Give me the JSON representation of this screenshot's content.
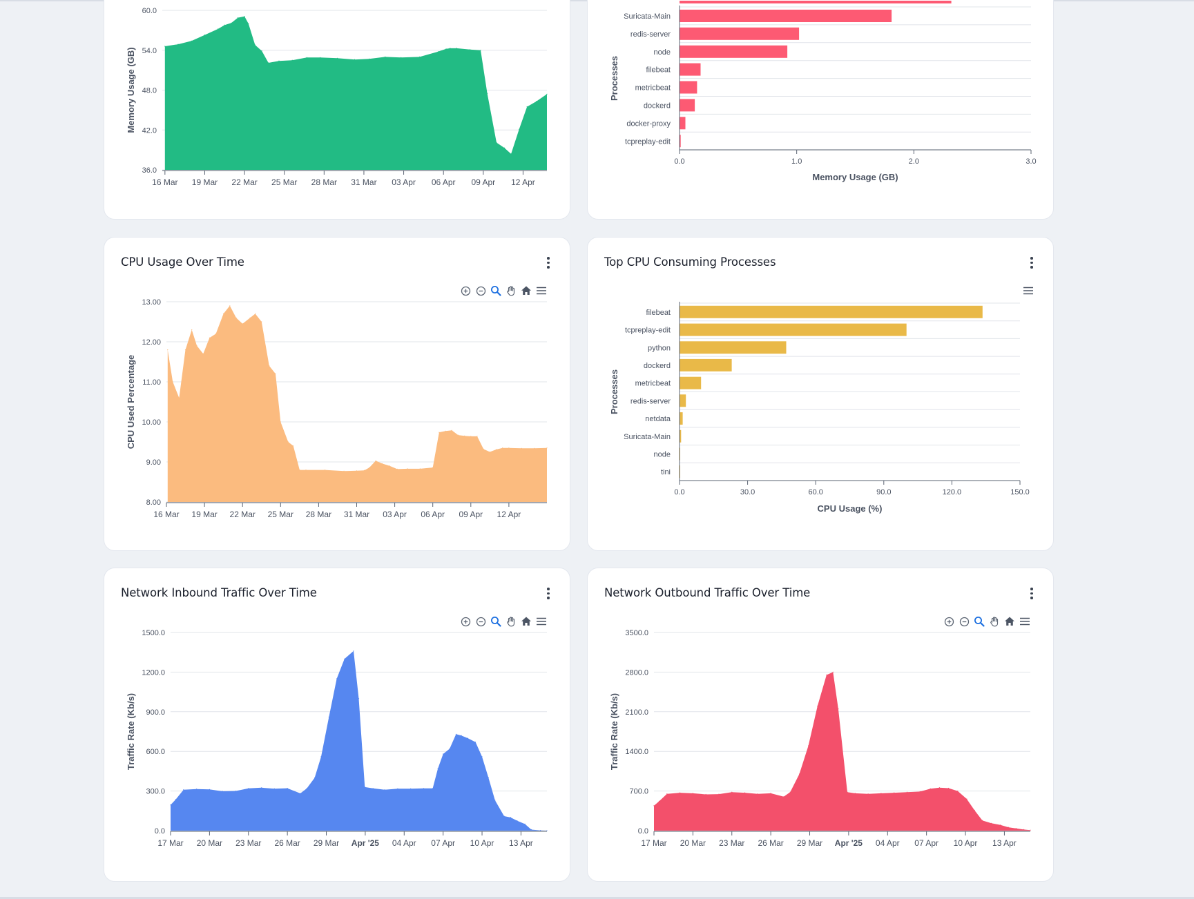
{
  "colors": {
    "memory_area": "#22bb84",
    "cpu_area": "#fbbb7f",
    "inbound_area": "#5687f0",
    "outbound_area": "#f3506b",
    "memory_bar": "#fd5a73",
    "cpu_bar": "#e9b948"
  },
  "cards": {
    "cpu_usage": {
      "title": "CPU Usage Over Time"
    },
    "top_cpu": {
      "title": "Top CPU Consuming Processes"
    },
    "net_in": {
      "title": "Network Inbound Traffic Over Time"
    },
    "net_out": {
      "title": "Network Outbound Traffic Over Time"
    }
  },
  "toolbar_icons": [
    "zoom-in-icon",
    "zoom-out-icon",
    "selection-zoom-icon",
    "pan-hand-icon",
    "home-reset-icon",
    "menu-icon"
  ],
  "chart_data": [
    {
      "id": "memory_over_time",
      "type": "area",
      "title": "",
      "ylabel": "Memory Usage (GB)",
      "xlabel": "",
      "ylim": [
        36,
        60
      ],
      "yticks": [
        "36.0",
        "42.0",
        "48.0",
        "54.0",
        "60.0"
      ],
      "xlim": [
        15.8,
        44.8
      ],
      "xticks": [
        {
          "x": 16,
          "label": "16 Mar"
        },
        {
          "x": 19,
          "label": "19 Mar"
        },
        {
          "x": 22,
          "label": "22 Mar"
        },
        {
          "x": 25,
          "label": "25 Mar"
        },
        {
          "x": 28,
          "label": "28 Mar"
        },
        {
          "x": 31,
          "label": "31 Mar"
        },
        {
          "x": 34,
          "label": "03 Apr"
        },
        {
          "x": 37,
          "label": "06 Apr"
        },
        {
          "x": 40,
          "label": "09 Apr"
        },
        {
          "x": 43,
          "label": "12 Apr"
        }
      ],
      "x": [
        16,
        17,
        18,
        19,
        20,
        20.5,
        21,
        21.5,
        22,
        22.3,
        22.8,
        23.3,
        23.8,
        24.6,
        25.6,
        26.7,
        27.7,
        29,
        30.3,
        31.4,
        32.6,
        33.8,
        35.2,
        36.6,
        37.2,
        37.5,
        38,
        39,
        39.8,
        40.3,
        41,
        41.6,
        42.1,
        42.7,
        43.3,
        44,
        44.8
      ],
      "values": [
        54.6,
        54.9,
        55.4,
        56.3,
        57.2,
        57.8,
        58.1,
        58.9,
        59.1,
        58.0,
        54.8,
        53.9,
        52.1,
        52.4,
        52.5,
        52.9,
        52.9,
        52.8,
        52.6,
        52.7,
        53.0,
        52.9,
        53.0,
        53.8,
        54.2,
        54.3,
        54.3,
        54.1,
        54.0,
        47.5,
        40.1,
        39.3,
        38.4,
        42.1,
        45.5,
        46.3,
        47.4
      ]
    },
    {
      "id": "top_memory_processes",
      "type": "bar",
      "orientation": "horizontal",
      "ylabel": "Processes",
      "xlabel": "Memory Usage (GB)",
      "xlim": [
        0,
        3
      ],
      "xticks": [
        "0.0",
        "1.0",
        "2.0",
        "3.0"
      ],
      "categories": [
        "Suricata-Main",
        "redis-server",
        "node",
        "filebeat",
        "metricbeat",
        "dockerd",
        "docker-proxy",
        "tcpreplay-edit"
      ],
      "values": [
        1.81,
        1.02,
        0.92,
        0.18,
        0.15,
        0.13,
        0.05,
        0.01
      ],
      "partial_bar_above": 2.32
    },
    {
      "id": "cpu_over_time",
      "type": "area",
      "title": "CPU Usage Over Time",
      "ylabel": "CPU Used Percentage",
      "xlabel": "",
      "ylim": [
        8,
        13
      ],
      "yticks": [
        "8.00",
        "9.00",
        "10.00",
        "11.00",
        "12.00",
        "13.00"
      ],
      "xlim": [
        16,
        46
      ],
      "xticks": [
        {
          "x": 16,
          "label": "16 Mar"
        },
        {
          "x": 19,
          "label": "19 Mar"
        },
        {
          "x": 22,
          "label": "22 Mar"
        },
        {
          "x": 25,
          "label": "25 Mar"
        },
        {
          "x": 28,
          "label": "28 Mar"
        },
        {
          "x": 31,
          "label": "31 Mar"
        },
        {
          "x": 34,
          "label": "03 Apr"
        },
        {
          "x": 37,
          "label": "06 Apr"
        },
        {
          "x": 40,
          "label": "09 Apr"
        },
        {
          "x": 43,
          "label": "12 Apr"
        }
      ],
      "x": [
        16.1,
        16.5,
        17,
        17.5,
        18,
        18.4,
        18.9,
        19.4,
        19.9,
        20.5,
        21,
        21.5,
        22,
        22.6,
        23,
        23.5,
        24.1,
        24.6,
        25,
        25.6,
        26,
        26.5,
        27,
        28.5,
        30,
        31,
        31.6,
        32,
        32.5,
        33,
        33.6,
        34.2,
        35,
        36,
        37,
        37.5,
        38,
        38.5,
        39,
        39.5,
        40,
        40.5,
        41,
        41.5,
        42,
        42.5,
        43,
        44,
        45,
        46
      ],
      "values": [
        11.8,
        11.0,
        10.6,
        11.8,
        12.3,
        11.9,
        11.7,
        12.1,
        12.2,
        12.7,
        12.9,
        12.6,
        12.45,
        12.6,
        12.7,
        12.5,
        11.4,
        11.2,
        10.0,
        9.5,
        9.4,
        8.8,
        8.8,
        8.8,
        8.77,
        8.78,
        8.79,
        8.86,
        9.03,
        8.96,
        8.9,
        8.82,
        8.83,
        8.83,
        8.86,
        9.74,
        9.77,
        9.79,
        9.67,
        9.65,
        9.64,
        9.64,
        9.32,
        9.25,
        9.31,
        9.35,
        9.35,
        9.34,
        9.34,
        9.35
      ]
    },
    {
      "id": "top_cpu_processes",
      "type": "bar",
      "orientation": "horizontal",
      "ylabel": "Processes",
      "xlabel": "CPU Usage (%)",
      "xlim": [
        0,
        150
      ],
      "xticks": [
        "0.0",
        "30.0",
        "60.0",
        "90.0",
        "120.0",
        "150.0"
      ],
      "categories": [
        "filebeat",
        "tcpreplay-edit",
        "python",
        "dockerd",
        "metricbeat",
        "redis-server",
        "netdata",
        "Suricata-Main",
        "node",
        "tini"
      ],
      "values": [
        133.5,
        100,
        47,
        23,
        9.5,
        2.8,
        1.4,
        0.7,
        0.1,
        0.05
      ]
    },
    {
      "id": "network_inbound",
      "type": "area",
      "title": "Network Inbound Traffic Over Time",
      "ylabel": "Traffic Rate (Kb/s)",
      "xlabel": "",
      "ylim": [
        0,
        1500
      ],
      "yticks": [
        "0.0",
        "300.0",
        "600.0",
        "900.0",
        "1200.0",
        "1500.0"
      ],
      "xlim": [
        17,
        46
      ],
      "xticks": [
        {
          "x": 17,
          "label": "17 Mar",
          "bold": false
        },
        {
          "x": 20,
          "label": "20 Mar",
          "bold": false
        },
        {
          "x": 23,
          "label": "23 Mar",
          "bold": false
        },
        {
          "x": 26,
          "label": "26 Mar",
          "bold": false
        },
        {
          "x": 29,
          "label": "29 Mar",
          "bold": false
        },
        {
          "x": 32,
          "label": "Apr '25",
          "bold": true
        },
        {
          "x": 35,
          "label": "04 Apr",
          "bold": false
        },
        {
          "x": 38,
          "label": "07 Apr",
          "bold": false
        },
        {
          "x": 41,
          "label": "10 Apr",
          "bold": false
        },
        {
          "x": 44,
          "label": "13 Apr",
          "bold": false
        }
      ],
      "x": [
        17,
        17.4,
        18,
        19,
        20,
        21,
        22,
        23,
        24,
        25,
        26,
        27,
        27.5,
        28.1,
        28.6,
        29.2,
        29.8,
        30.4,
        31.1,
        31.5,
        31.97,
        32.6,
        33.5,
        34.5,
        35.5,
        36.5,
        37.2,
        37.6,
        38,
        38.5,
        39,
        39.4,
        39.9,
        40.5,
        41,
        41.5,
        42,
        42.7,
        43.2,
        43.7,
        44.3,
        44.8,
        45.5,
        46
      ],
      "values": [
        195,
        237,
        310,
        315,
        312,
        298,
        300,
        320,
        325,
        318,
        321,
        282,
        320,
        400,
        560,
        860,
        1150,
        1300,
        1360,
        1000,
        330,
        320,
        310,
        318,
        318,
        320,
        320,
        470,
        580,
        620,
        730,
        720,
        700,
        670,
        560,
        400,
        230,
        110,
        100,
        75,
        50,
        8,
        2,
        0
      ]
    },
    {
      "id": "network_outbound",
      "type": "area",
      "title": "Network Outbound Traffic Over Time",
      "ylabel": "Traffic Rate (Kb/s)",
      "xlabel": "",
      "ylim": [
        0,
        3500
      ],
      "yticks": [
        "0.0",
        "700.0",
        "1400.0",
        "2100.0",
        "2800.0",
        "3500.0"
      ],
      "xlim": [
        17,
        46
      ],
      "xticks": [
        {
          "x": 17,
          "label": "17 Mar",
          "bold": false
        },
        {
          "x": 20,
          "label": "20 Mar",
          "bold": false
        },
        {
          "x": 23,
          "label": "23 Mar",
          "bold": false
        },
        {
          "x": 26,
          "label": "26 Mar",
          "bold": false
        },
        {
          "x": 29,
          "label": "29 Mar",
          "bold": false
        },
        {
          "x": 32,
          "label": "Apr '25",
          "bold": true
        },
        {
          "x": 35,
          "label": "04 Apr",
          "bold": false
        },
        {
          "x": 38,
          "label": "07 Apr",
          "bold": false
        },
        {
          "x": 41,
          "label": "10 Apr",
          "bold": false
        },
        {
          "x": 44,
          "label": "13 Apr",
          "bold": false
        }
      ],
      "x": [
        17,
        17.4,
        18,
        19,
        20,
        21,
        22,
        23,
        24,
        25,
        26,
        27,
        27.5,
        28.2,
        28.9,
        29.6,
        30.3,
        30.8,
        31.2,
        31.9,
        32.5,
        33.5,
        34.5,
        35.5,
        36.5,
        37.5,
        38.3,
        39,
        39.7,
        40.4,
        41.1,
        41.7,
        42.3,
        43,
        43.7,
        44.3,
        44.9,
        45.5,
        46
      ],
      "values": [
        440,
        520,
        650,
        670,
        660,
        640,
        645,
        680,
        670,
        650,
        660,
        600,
        680,
        1000,
        1500,
        2200,
        2750,
        2800,
        2150,
        680,
        660,
        650,
        660,
        670,
        680,
        690,
        740,
        760,
        750,
        700,
        560,
        360,
        180,
        130,
        100,
        60,
        40,
        20,
        10
      ]
    }
  ]
}
